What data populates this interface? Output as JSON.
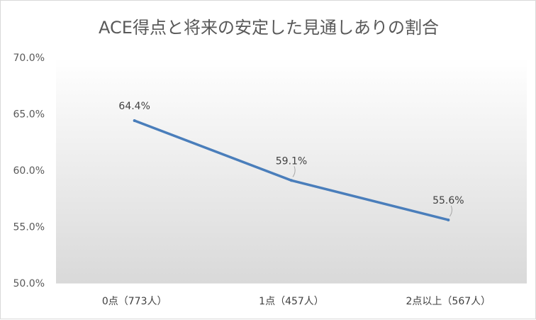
{
  "chart_data": {
    "type": "line",
    "title": "ACE得点と将来の安定した見通しありの割合",
    "xlabel": "",
    "ylabel": "",
    "categories": [
      "0点（773人）",
      "1点（457人）",
      "2点以上（567人）"
    ],
    "series": [
      {
        "values": [
          64.4,
          59.1,
          55.6
        ],
        "data_labels": [
          "64.4%",
          "59.1%",
          "55.6%"
        ],
        "color": "#4a7ebb"
      }
    ],
    "ylim": [
      50,
      70
    ],
    "yticks": [
      50,
      55,
      60,
      65,
      70
    ],
    "ytick_labels": [
      "50.0%",
      "55.0%",
      "60.0%",
      "65.0%",
      "70.0%"
    ],
    "grid": false,
    "legend": "none",
    "colors": {
      "line": "#4a7ebb",
      "plot_gradient_top": "#ffffff",
      "plot_gradient_bottom": "#d9d9d9",
      "text": "#595959"
    }
  }
}
